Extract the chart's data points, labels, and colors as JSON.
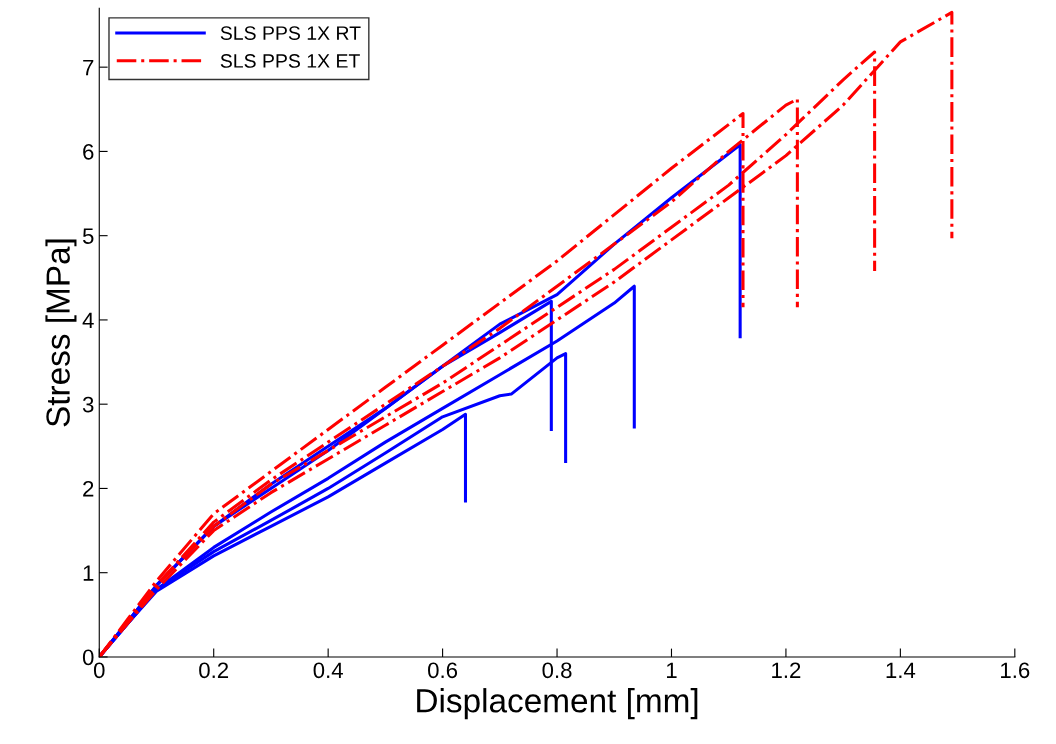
{
  "chart_data": {
    "type": "line",
    "xlabel": "Displacement [mm]",
    "ylabel": "Stress [MPa]",
    "xlim": [
      0,
      1.6
    ],
    "ylim": [
      0,
      7.7
    ],
    "xticks": [
      0,
      0.2,
      0.4,
      0.6,
      0.8,
      1,
      1.2,
      1.4,
      1.6
    ],
    "yticks": [
      0,
      1,
      2,
      3,
      4,
      5,
      6,
      7
    ],
    "grid": false,
    "legend": "top left",
    "marker": "none",
    "series": [
      {
        "name": "SLS PPS 1X RT",
        "color": "#0000ff",
        "line_style": "solid",
        "x": [
          0,
          0.05,
          0.1,
          0.2,
          0.3,
          0.4,
          0.5,
          0.6,
          0.7,
          0.79,
          0.79
        ],
        "values": [
          0,
          0.42,
          0.85,
          1.55,
          2.0,
          2.45,
          2.95,
          3.45,
          3.85,
          4.22,
          2.7
        ]
      },
      {
        "color": "#0000ff",
        "line_style": "solid",
        "x": [
          0,
          0.05,
          0.1,
          0.2,
          0.3,
          0.4,
          0.5,
          0.6,
          0.64,
          0.64
        ],
        "values": [
          0,
          0.4,
          0.78,
          1.2,
          1.55,
          1.9,
          2.3,
          2.7,
          2.88,
          1.85
        ]
      },
      {
        "color": "#0000ff",
        "line_style": "solid",
        "x": [
          0,
          0.05,
          0.1,
          0.2,
          0.3,
          0.4,
          0.5,
          0.6,
          0.7,
          0.72,
          0.8,
          0.815,
          0.815
        ],
        "values": [
          0,
          0.4,
          0.8,
          1.25,
          1.62,
          2.0,
          2.42,
          2.85,
          3.1,
          3.12,
          3.55,
          3.6,
          2.32
        ]
      },
      {
        "color": "#0000ff",
        "line_style": "solid",
        "x": [
          0,
          0.05,
          0.1,
          0.2,
          0.3,
          0.4,
          0.5,
          0.6,
          0.7,
          0.8,
          0.9,
          0.935,
          0.935
        ],
        "values": [
          0,
          0.4,
          0.8,
          1.3,
          1.72,
          2.12,
          2.55,
          2.95,
          3.35,
          3.75,
          4.2,
          4.4,
          2.73
        ]
      },
      {
        "color": "#0000ff",
        "line_style": "solid",
        "x": [
          0,
          0.05,
          0.1,
          0.2,
          0.3,
          0.4,
          0.5,
          0.6,
          0.7,
          0.8,
          0.9,
          1.0,
          1.12,
          1.12
        ],
        "values": [
          0,
          0.42,
          0.85,
          1.55,
          2.05,
          2.5,
          2.95,
          3.45,
          3.95,
          4.3,
          4.9,
          5.45,
          6.08,
          3.8
        ]
      },
      {
        "name": "SLS PPS 1X ET",
        "color": "#ff0000",
        "line_style": "dashdot",
        "x": [
          0,
          0.05,
          0.1,
          0.2,
          0.3,
          0.4,
          0.5,
          0.6,
          0.7,
          0.8,
          0.9,
          1.0,
          1.125,
          1.125
        ],
        "values": [
          0,
          0.45,
          0.9,
          1.7,
          2.2,
          2.7,
          3.2,
          3.7,
          4.2,
          4.7,
          5.25,
          5.8,
          6.45,
          4.15
        ]
      },
      {
        "color": "#ff0000",
        "line_style": "dashdot",
        "x": [
          0,
          0.05,
          0.1,
          0.2,
          0.3,
          0.4,
          0.5,
          0.6,
          0.7,
          0.8,
          0.9,
          1.0,
          1.1,
          1.2,
          1.22,
          1.22
        ],
        "values": [
          0,
          0.42,
          0.85,
          1.6,
          2.1,
          2.55,
          3.0,
          3.45,
          3.9,
          4.4,
          4.9,
          5.4,
          6.0,
          6.55,
          6.62,
          4.15
        ]
      },
      {
        "color": "#ff0000",
        "line_style": "dashdot",
        "x": [
          0,
          0.05,
          0.1,
          0.2,
          0.3,
          0.4,
          0.5,
          0.6,
          0.7,
          0.8,
          0.9,
          1.0,
          1.1,
          1.2,
          1.3,
          1.355,
          1.355
        ],
        "values": [
          0,
          0.42,
          0.85,
          1.55,
          2.05,
          2.45,
          2.85,
          3.25,
          3.7,
          4.15,
          4.6,
          5.1,
          5.6,
          6.2,
          6.85,
          7.18,
          4.58
        ]
      },
      {
        "color": "#ff0000",
        "line_style": "dashdot",
        "x": [
          0,
          0.05,
          0.1,
          0.2,
          0.3,
          0.4,
          0.5,
          0.6,
          0.7,
          0.8,
          0.9,
          1.0,
          1.1,
          1.2,
          1.3,
          1.4,
          1.49,
          1.49
        ],
        "values": [
          0,
          0.4,
          0.8,
          1.5,
          1.95,
          2.35,
          2.75,
          3.15,
          3.55,
          4.0,
          4.45,
          4.95,
          5.45,
          5.95,
          6.55,
          7.3,
          7.65,
          4.97
        ]
      }
    ]
  }
}
